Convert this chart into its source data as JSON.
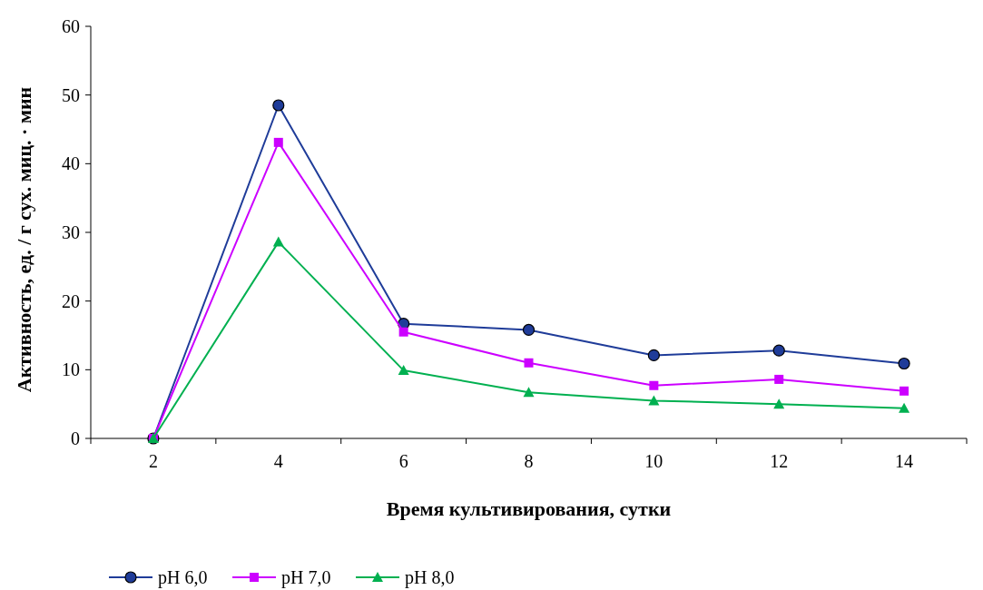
{
  "chart_data": {
    "type": "line",
    "xlabel": "Время культивирования, сутки",
    "ylabel": "Активность, ед. / г сух. миц. · мин",
    "categories": [
      "2",
      "4",
      "6",
      "8",
      "10",
      "12",
      "14"
    ],
    "ylim": [
      0,
      60
    ],
    "yticks": [
      0,
      10,
      20,
      30,
      40,
      50,
      60
    ],
    "grid": false,
    "legend": "bottom",
    "series": [
      {
        "name": "pH 6,0",
        "color": "#1f3c99",
        "marker": "circle",
        "values": [
          0,
          48.5,
          16.7,
          15.8,
          12.1,
          12.8,
          10.9
        ]
      },
      {
        "name": "pH 7,0",
        "color": "#cc00ff",
        "marker": "square",
        "values": [
          0,
          43.1,
          15.5,
          11.0,
          7.7,
          8.6,
          6.9
        ]
      },
      {
        "name": "pH 8,0",
        "color": "#00b050",
        "marker": "triangle",
        "values": [
          0,
          28.6,
          9.9,
          6.7,
          5.5,
          5.0,
          4.4
        ]
      }
    ]
  }
}
